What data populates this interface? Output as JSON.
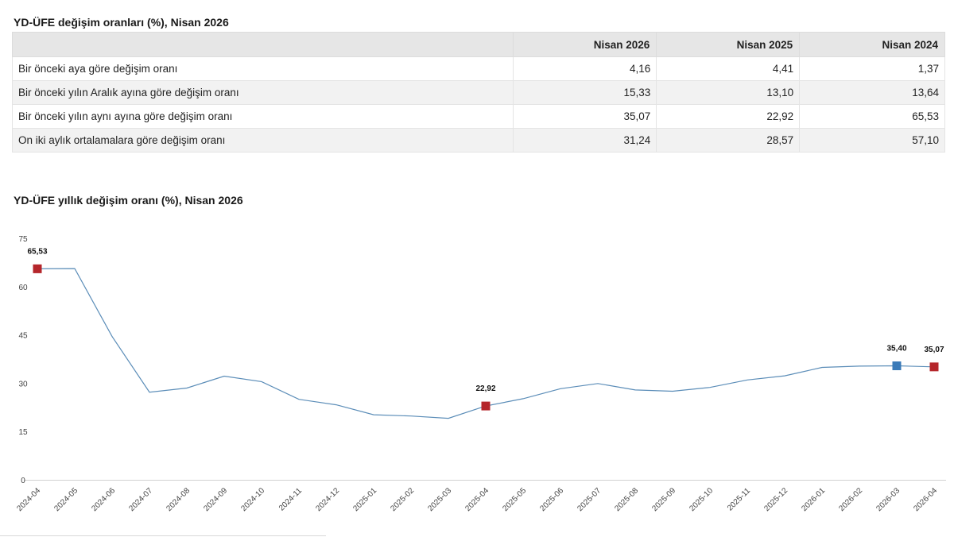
{
  "table": {
    "title": "YD-ÜFE değişim oranları (%), Nisan 2026",
    "headers": [
      "",
      "Nisan 2026",
      "Nisan 2025",
      "Nisan 2024"
    ],
    "rows": [
      {
        "label": "Bir önceki aya göre değişim oranı",
        "values": [
          "4,16",
          "4,41",
          "1,37"
        ]
      },
      {
        "label": "Bir önceki yılın Aralık ayına göre değişim oranı",
        "values": [
          "15,33",
          "13,10",
          "13,64"
        ]
      },
      {
        "label": "Bir önceki yılın aynı ayına göre değişim oranı",
        "values": [
          "35,07",
          "22,92",
          "65,53"
        ]
      },
      {
        "label": "On iki aylık ortalamalara göre değişim oranı",
        "values": [
          "31,24",
          "28,57",
          "57,10"
        ]
      }
    ]
  },
  "chart_data": {
    "type": "line",
    "title": "YD-ÜFE yıllık değişim oranı (%), Nisan 2026",
    "xlabel": "",
    "ylabel": "",
    "ylim": [
      0,
      75
    ],
    "yticks": [
      "0",
      "15",
      "30",
      "45",
      "60",
      "75"
    ],
    "x": [
      "2024-04",
      "2024-05",
      "2024-06",
      "2024-07",
      "2024-08",
      "2024-09",
      "2024-10",
      "2024-11",
      "2024-12",
      "2025-01",
      "2025-02",
      "2025-03",
      "2025-04",
      "2025-05",
      "2025-06",
      "2025-07",
      "2025-08",
      "2025-09",
      "2025-10",
      "2025-11",
      "2025-12",
      "2026-01",
      "2026-02",
      "2026-03",
      "2026-04"
    ],
    "series": [
      {
        "values": [
          65.53,
          65.6,
          44.5,
          27.2,
          28.5,
          32.2,
          30.5,
          25.0,
          23.3,
          20.2,
          19.8,
          19.1,
          22.92,
          25.2,
          28.3,
          29.9,
          27.9,
          27.5,
          28.7,
          31.0,
          32.3,
          34.9,
          35.3,
          35.4,
          35.07
        ],
        "color": "#5b8db8"
      }
    ],
    "highlighted_points": [
      {
        "x": "2024-04",
        "value": 65.53,
        "label": "65,53",
        "color": "#b5262b"
      },
      {
        "x": "2025-04",
        "value": 22.92,
        "label": "22,92",
        "color": "#b5262b"
      },
      {
        "x": "2026-03",
        "value": 35.4,
        "label": "35,40",
        "color": "#3a7ab8"
      },
      {
        "x": "2026-04",
        "value": 35.07,
        "label": "35,07",
        "color": "#b5262b"
      }
    ],
    "grid": false,
    "legend": "none"
  }
}
